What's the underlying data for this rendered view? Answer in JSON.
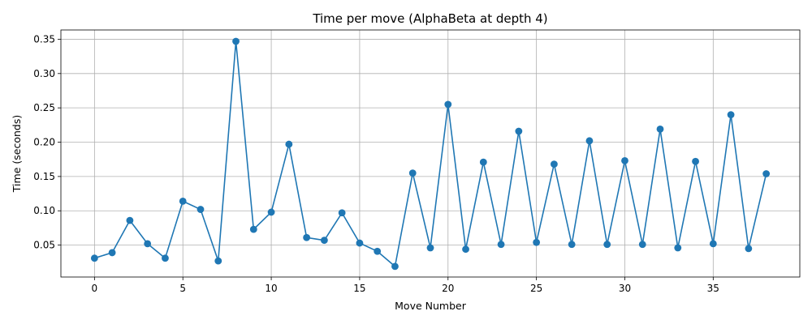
{
  "chart_data": {
    "type": "line",
    "title": "Time per move (AlphaBeta at depth 4)",
    "xlabel": "Move Number",
    "ylabel": "Time (seconds)",
    "xlim": [
      -1.9,
      39.9
    ],
    "ylim": [
      0.0035,
      0.3635
    ],
    "xticks": [
      0,
      5,
      10,
      15,
      20,
      25,
      30,
      35
    ],
    "xtick_labels": [
      "0",
      "5",
      "10",
      "15",
      "20",
      "25",
      "30",
      "35"
    ],
    "yticks": [
      0.05,
      0.1,
      0.15,
      0.2,
      0.25,
      0.3,
      0.35
    ],
    "ytick_labels": [
      "0.05",
      "0.10",
      "0.15",
      "0.20",
      "0.25",
      "0.30",
      "0.35"
    ],
    "grid": true,
    "legend": "none",
    "marker": "circle",
    "color": "#1f77b4",
    "series": [
      {
        "x": [
          0,
          1,
          2,
          3,
          4,
          5,
          6,
          7,
          8,
          9,
          10,
          11,
          12,
          13,
          14,
          15,
          16,
          17,
          18,
          19,
          20,
          21,
          22,
          23,
          24,
          25,
          26,
          27,
          28,
          29,
          30,
          31,
          32,
          33,
          34,
          35,
          36,
          37,
          38
        ],
        "values": [
          0.031,
          0.039,
          0.086,
          0.052,
          0.031,
          0.114,
          0.102,
          0.027,
          0.347,
          0.073,
          0.098,
          0.197,
          0.061,
          0.057,
          0.097,
          0.053,
          0.041,
          0.019,
          0.155,
          0.046,
          0.255,
          0.044,
          0.171,
          0.051,
          0.216,
          0.054,
          0.168,
          0.051,
          0.202,
          0.051,
          0.173,
          0.051,
          0.219,
          0.046,
          0.172,
          0.052,
          0.24,
          0.045,
          0.154
        ]
      }
    ]
  }
}
